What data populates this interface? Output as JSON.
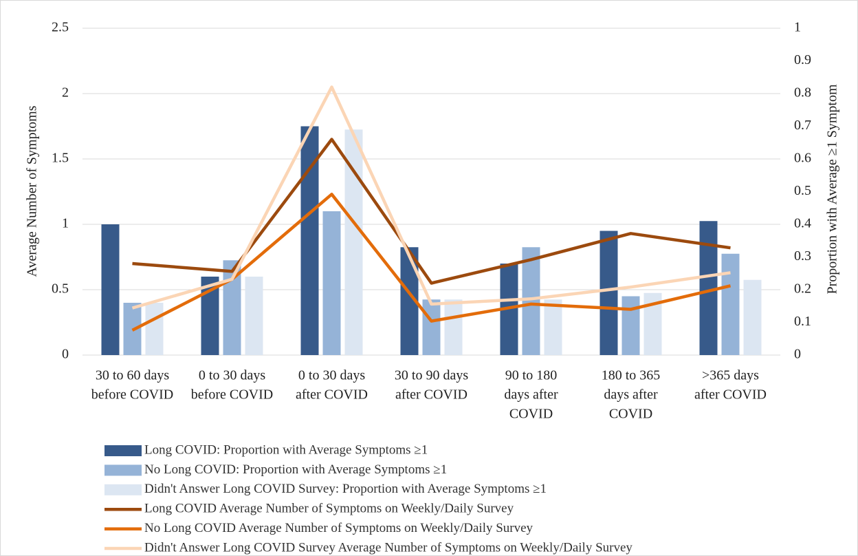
{
  "chart_data": {
    "type": "bar-line",
    "y_label": "Average Number of Symptoms",
    "y2_label": "Proportion with Average ≥1 Symptom",
    "categories": [
      [
        "30 to 60 days",
        "before COVID"
      ],
      [
        "0 to 30 days",
        "before COVID"
      ],
      [
        "0 to 30 days",
        "after COVID"
      ],
      [
        "30 to 90 days",
        "after COVID"
      ],
      [
        "90 to 180",
        "days after",
        "COVID"
      ],
      [
        "180 to 365",
        "days after",
        "COVID"
      ],
      [
        ">365 days",
        "after COVID"
      ]
    ],
    "ylim": [
      0,
      2.5
    ],
    "yticks": [
      0,
      0.5,
      1,
      1.5,
      2,
      2.5
    ],
    "y2lim": [
      0,
      1
    ],
    "y2ticks": [
      0,
      0.1,
      0.2,
      0.3,
      0.4,
      0.5,
      0.6,
      0.7,
      0.8,
      0.9,
      1
    ],
    "grid": true,
    "series": [
      {
        "name": "Long COVID: Proportion with Average Symptoms ≥1",
        "kind": "bar",
        "axis": "y2",
        "color": "#375a8a",
        "values": [
          0.4,
          0.24,
          0.7,
          0.33,
          0.28,
          0.38,
          0.41
        ]
      },
      {
        "name": "No Long COVID: Proportion with Average Symptoms ≥1",
        "kind": "bar",
        "axis": "y2",
        "color": "#95b3d7",
        "values": [
          0.16,
          0.29,
          0.44,
          0.17,
          0.33,
          0.18,
          0.31
        ]
      },
      {
        "name": "Didn't Answer Long COVID Survey: Proportion with Average Symptoms ≥1",
        "kind": "bar",
        "axis": "y2",
        "color": "#dce6f2",
        "values": [
          0.16,
          0.24,
          0.69,
          0.17,
          0.17,
          0.19,
          0.23
        ]
      },
      {
        "name": "Long COVID Average Number of Symptoms on Weekly/Daily Survey",
        "kind": "line",
        "color": "#9c4a0e",
        "values": [
          0.7,
          0.64,
          1.65,
          0.55,
          0.73,
          0.93,
          0.82
        ]
      },
      {
        "name": "No Long COVID  Average Number of Symptoms on Weekly/Daily Survey",
        "kind": "line",
        "color": "#e36c0a",
        "values": [
          0.19,
          0.58,
          1.23,
          0.26,
          0.39,
          0.35,
          0.53
        ]
      },
      {
        "name": "Didn't Answer Long COVID Survey  Average Number of Symptoms on Weekly/Daily Survey",
        "kind": "line",
        "color": "#fbd5b5",
        "values": [
          0.36,
          0.58,
          2.05,
          0.39,
          0.43,
          0.52,
          0.63
        ]
      }
    ]
  }
}
